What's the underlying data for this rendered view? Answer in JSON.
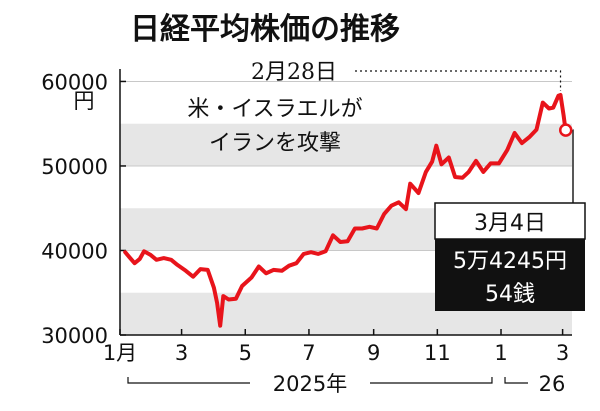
{
  "chart_data": {
    "type": "line",
    "title": "日経平均株価の推移",
    "ylabel_unit": "円",
    "ylim": [
      30000,
      61000
    ],
    "yticks": [
      30000,
      40000,
      50000,
      60000
    ],
    "ytick_labels": [
      "30000",
      "40000",
      "50000",
      "60000"
    ],
    "xlim": [
      "2025-01-01",
      "2026-03-10"
    ],
    "xticks": [
      {
        "date": "2025-01-01",
        "label": "1月"
      },
      {
        "date": "2025-03-01",
        "label": "3"
      },
      {
        "date": "2025-05-01",
        "label": "5"
      },
      {
        "date": "2025-07-01",
        "label": "7"
      },
      {
        "date": "2025-09-01",
        "label": "9"
      },
      {
        "date": "2025-11-01",
        "label": "11"
      },
      {
        "date": "2026-01-01",
        "label": "1"
      },
      {
        "date": "2026-03-01",
        "label": "3"
      }
    ],
    "year_labels": [
      {
        "label": "2025年"
      },
      {
        "label": "26"
      }
    ],
    "line_color": "#e8141b",
    "band_color": "#e6e6e6",
    "series": [
      {
        "points": [
          [
            "2025-01-06",
            39800
          ],
          [
            "2025-01-10",
            39200
          ],
          [
            "2025-01-15",
            38500
          ],
          [
            "2025-01-20",
            39000
          ],
          [
            "2025-01-24",
            39900
          ],
          [
            "2025-01-30",
            39500
          ],
          [
            "2025-02-05",
            38900
          ],
          [
            "2025-02-12",
            39100
          ],
          [
            "2025-02-19",
            38900
          ],
          [
            "2025-02-25",
            38300
          ],
          [
            "2025-03-05",
            37600
          ],
          [
            "2025-03-12",
            36900
          ],
          [
            "2025-03-19",
            37800
          ],
          [
            "2025-03-26",
            37700
          ],
          [
            "2025-04-01",
            35600
          ],
          [
            "2025-04-04",
            33800
          ],
          [
            "2025-04-07",
            31100
          ],
          [
            "2025-04-10",
            34600
          ],
          [
            "2025-04-15",
            34200
          ],
          [
            "2025-04-22",
            34300
          ],
          [
            "2025-04-28",
            35800
          ],
          [
            "2025-05-07",
            36800
          ],
          [
            "2025-05-14",
            38100
          ],
          [
            "2025-05-21",
            37300
          ],
          [
            "2025-05-28",
            37700
          ],
          [
            "2025-06-05",
            37600
          ],
          [
            "2025-06-12",
            38200
          ],
          [
            "2025-06-19",
            38500
          ],
          [
            "2025-06-26",
            39600
          ],
          [
            "2025-07-03",
            39800
          ],
          [
            "2025-07-10",
            39600
          ],
          [
            "2025-07-17",
            39900
          ],
          [
            "2025-07-24",
            41800
          ],
          [
            "2025-07-31",
            41000
          ],
          [
            "2025-08-07",
            41100
          ],
          [
            "2025-08-14",
            42600
          ],
          [
            "2025-08-21",
            42600
          ],
          [
            "2025-08-28",
            42800
          ],
          [
            "2025-09-04",
            42600
          ],
          [
            "2025-09-11",
            44300
          ],
          [
            "2025-09-18",
            45300
          ],
          [
            "2025-09-25",
            45700
          ],
          [
            "2025-10-02",
            44900
          ],
          [
            "2025-10-06",
            47900
          ],
          [
            "2025-10-14",
            46800
          ],
          [
            "2025-10-21",
            49300
          ],
          [
            "2025-10-27",
            50500
          ],
          [
            "2025-10-31",
            52400
          ],
          [
            "2025-11-05",
            50200
          ],
          [
            "2025-11-12",
            51000
          ],
          [
            "2025-11-18",
            48700
          ],
          [
            "2025-11-25",
            48600
          ],
          [
            "2025-12-01",
            49300
          ],
          [
            "2025-12-08",
            50600
          ],
          [
            "2025-12-15",
            49300
          ],
          [
            "2025-12-22",
            50300
          ],
          [
            "2025-12-30",
            50300
          ],
          [
            "2026-01-07",
            51900
          ],
          [
            "2026-01-14",
            53900
          ],
          [
            "2026-01-21",
            52700
          ],
          [
            "2026-01-28",
            53400
          ],
          [
            "2026-02-04",
            54300
          ],
          [
            "2026-02-10",
            57500
          ],
          [
            "2026-02-16",
            56800
          ],
          [
            "2026-02-20",
            56900
          ],
          [
            "2026-02-25",
            58300
          ],
          [
            "2026-02-27",
            58400
          ],
          [
            "2026-03-02",
            56000
          ],
          [
            "2026-03-03",
            55000
          ],
          [
            "2026-03-04",
            54245
          ]
        ]
      }
    ],
    "annotations": [
      {
        "date": "2026-02-27",
        "value": 58400,
        "date_label": "2月28日",
        "text_lines": [
          "米・イスラエルが",
          "イランを攻撃"
        ]
      },
      {
        "date": "2026-03-04",
        "value": 54245,
        "date_label": "3月4日",
        "value_lines": [
          "5万4245円",
          "54銭"
        ]
      }
    ]
  }
}
